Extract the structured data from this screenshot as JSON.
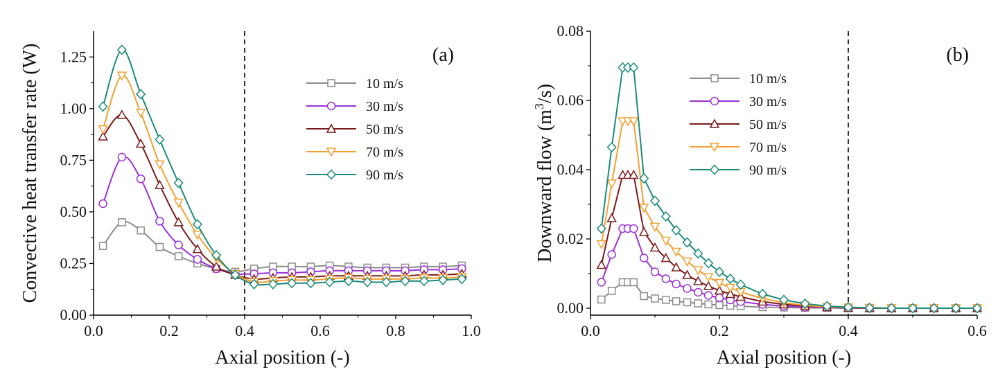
{
  "chart_data": [
    {
      "type": "line",
      "panel_label": "(a)",
      "xlabel": "Axial position (-)",
      "ylabel": "Convective heat transfer rate (W)",
      "xlim": [
        0.0,
        1.0
      ],
      "ylim": [
        0.0,
        1.375
      ],
      "xticks": [
        "0.0",
        "0.2",
        "0.4",
        "0.6",
        "0.8",
        "1.0"
      ],
      "yticks": [
        "0.00",
        "0.25",
        "0.50",
        "0.75",
        "1.00",
        "1.25"
      ],
      "vline": 0.4,
      "legend_position": "top-right",
      "x": [
        0.025,
        0.075,
        0.125,
        0.175,
        0.225,
        0.275,
        0.325,
        0.375,
        0.425,
        0.475,
        0.525,
        0.575,
        0.625,
        0.675,
        0.725,
        0.775,
        0.825,
        0.875,
        0.925,
        0.975
      ],
      "series": [
        {
          "name": "10 m/s",
          "color": "#8c8c8c",
          "marker": "square",
          "values": [
            0.335,
            0.45,
            0.41,
            0.33,
            0.285,
            0.25,
            0.225,
            0.21,
            0.225,
            0.235,
            0.235,
            0.235,
            0.24,
            0.235,
            0.23,
            0.23,
            0.23,
            0.235,
            0.235,
            0.24
          ]
        },
        {
          "name": "30 m/s",
          "color": "#9b30d9",
          "marker": "circle",
          "values": [
            0.54,
            0.765,
            0.66,
            0.455,
            0.34,
            0.27,
            0.225,
            0.2,
            0.2,
            0.205,
            0.205,
            0.21,
            0.215,
            0.215,
            0.215,
            0.215,
            0.215,
            0.22,
            0.22,
            0.225
          ]
        },
        {
          "name": "50 m/s",
          "color": "#7a1a1a",
          "marker": "triangle-up",
          "values": [
            0.865,
            0.97,
            0.83,
            0.63,
            0.45,
            0.32,
            0.235,
            0.195,
            0.175,
            0.18,
            0.185,
            0.185,
            0.19,
            0.19,
            0.19,
            0.19,
            0.19,
            0.195,
            0.195,
            0.2
          ]
        },
        {
          "name": "70 m/s",
          "color": "#f5a030",
          "marker": "triangle-down",
          "values": [
            0.9,
            1.16,
            0.98,
            0.73,
            0.545,
            0.39,
            0.275,
            0.2,
            0.16,
            0.165,
            0.17,
            0.17,
            0.175,
            0.18,
            0.175,
            0.175,
            0.175,
            0.18,
            0.18,
            0.185
          ]
        },
        {
          "name": "90 m/s",
          "color": "#1a8a7a",
          "marker": "diamond",
          "values": [
            1.01,
            1.285,
            1.07,
            0.85,
            0.64,
            0.44,
            0.29,
            0.195,
            0.15,
            0.15,
            0.155,
            0.155,
            0.16,
            0.165,
            0.16,
            0.16,
            0.165,
            0.165,
            0.17,
            0.175
          ]
        }
      ]
    },
    {
      "type": "line",
      "panel_label": "(b)",
      "xlabel": "Axial position (-)",
      "ylabel": "Downward flow (m",
      "ylabel_superscript": "3",
      "ylabel_tail": "/s)",
      "xlim": [
        0.0,
        0.6
      ],
      "ylim": [
        -0.002,
        0.08
      ],
      "xticks": [
        "0.0",
        "0.2",
        "0.4",
        "0.6"
      ],
      "yticks": [
        "0.00",
        "0.02",
        "0.04",
        "0.06",
        "0.08"
      ],
      "vline": 0.4,
      "legend_position": "top-center",
      "x": [
        0.017,
        0.033,
        0.05,
        0.058,
        0.067,
        0.083,
        0.1,
        0.117,
        0.133,
        0.15,
        0.167,
        0.183,
        0.2,
        0.217,
        0.233,
        0.267,
        0.3,
        0.333,
        0.367,
        0.4,
        0.433,
        0.467,
        0.5,
        0.533,
        0.567,
        0.6
      ],
      "series": [
        {
          "name": "10 m/s",
          "color": "#8c8c8c",
          "marker": "square",
          "values": [
            0.0025,
            0.005,
            0.0075,
            0.0075,
            0.0075,
            0.0035,
            0.0028,
            0.0024,
            0.002,
            0.0017,
            0.0014,
            0.0011,
            0.0009,
            0.0007,
            0.0006,
            0.0003,
            0.0002,
            0.0001,
            0.0001,
            0.0,
            0.0,
            0.0,
            0.0,
            0.0,
            0.0,
            0.0
          ]
        },
        {
          "name": "30 m/s",
          "color": "#9b30d9",
          "marker": "circle",
          "values": [
            0.0075,
            0.0155,
            0.023,
            0.023,
            0.023,
            0.0145,
            0.0105,
            0.0085,
            0.007,
            0.0057,
            0.0046,
            0.0037,
            0.003,
            0.0024,
            0.0019,
            0.0011,
            0.0006,
            0.0003,
            0.0002,
            0.0001,
            0.0,
            0.0,
            0.0,
            0.0,
            0.0,
            0.0
          ]
        },
        {
          "name": "50 m/s",
          "color": "#7a1a1a",
          "marker": "triangle-up",
          "values": [
            0.0125,
            0.026,
            0.0385,
            0.0385,
            0.0385,
            0.022,
            0.0175,
            0.0145,
            0.0118,
            0.0096,
            0.0078,
            0.0064,
            0.0051,
            0.0041,
            0.0033,
            0.0019,
            0.0011,
            0.0006,
            0.0003,
            0.0001,
            0.0,
            0.0,
            0.0,
            0.0,
            0.0,
            0.0
          ]
        },
        {
          "name": "70 m/s",
          "color": "#f5a030",
          "marker": "triangle-down",
          "values": [
            0.0185,
            0.036,
            0.054,
            0.054,
            0.054,
            0.029,
            0.0235,
            0.0195,
            0.0163,
            0.0135,
            0.011,
            0.009,
            0.0073,
            0.0059,
            0.0047,
            0.0028,
            0.0016,
            0.0008,
            0.0004,
            0.0002,
            0.0001,
            0.0,
            0.0,
            0.0,
            0.0,
            0.0
          ]
        },
        {
          "name": "90 m/s",
          "color": "#1a8a7a",
          "marker": "diamond",
          "values": [
            0.023,
            0.0465,
            0.0695,
            0.0695,
            0.0695,
            0.0375,
            0.031,
            0.0265,
            0.0225,
            0.019,
            0.0158,
            0.013,
            0.0105,
            0.0085,
            0.0068,
            0.0041,
            0.0024,
            0.0013,
            0.0006,
            0.0003,
            0.0001,
            0.0,
            0.0,
            0.0,
            0.0,
            0.0
          ]
        }
      ]
    }
  ]
}
